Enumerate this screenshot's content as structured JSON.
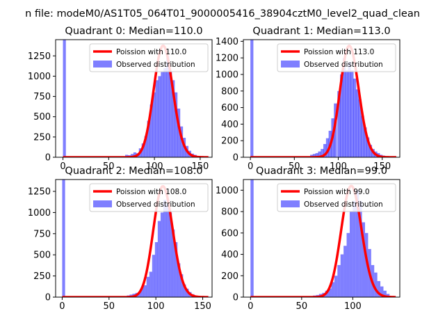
{
  "figure": {
    "suptitle": "n file: modeM0/AS1T05_064T01_9000005416_38904cztM0_level2_quad_clean"
  },
  "colors": {
    "histogram": "#0000ff",
    "poisson": "#ff0000",
    "axes": "#000000",
    "background": "#ffffff"
  },
  "chart_data": [
    {
      "type": "bar",
      "quadrant": 0,
      "title": "Quadrant 0: Median=110.0",
      "xlim": [
        -8,
        163
      ],
      "ylim": [
        0,
        1450
      ],
      "xticks": [
        0,
        50,
        100,
        150
      ],
      "yticks": [
        0,
        250,
        500,
        750,
        1000,
        1250
      ],
      "legend": {
        "placement": "top-right",
        "entries": [
          "Poission with 110.0",
          "Observed distribution"
        ]
      },
      "poisson_mean": 110,
      "poisson_peak": 1375,
      "bin_width": 3.2,
      "zero_bin_height": 1450,
      "bins": [
        [
          68,
          30
        ],
        [
          71,
          25
        ],
        [
          74,
          40
        ],
        [
          77,
          60
        ],
        [
          80,
          50
        ],
        [
          83,
          110
        ],
        [
          86,
          170
        ],
        [
          89,
          260
        ],
        [
          92,
          450
        ],
        [
          95,
          650
        ],
        [
          98,
          800
        ],
        [
          101,
          950
        ],
        [
          104,
          1000
        ],
        [
          107,
          1050
        ],
        [
          110,
          1100
        ],
        [
          113,
          1250
        ],
        [
          116,
          1050
        ],
        [
          119,
          950
        ],
        [
          122,
          800
        ],
        [
          125,
          600
        ],
        [
          128,
          380
        ],
        [
          131,
          240
        ],
        [
          134,
          140
        ],
        [
          137,
          80
        ],
        [
          140,
          45
        ],
        [
          143,
          30
        ],
        [
          146,
          15
        ],
        [
          149,
          10
        ],
        [
          152,
          5
        ]
      ]
    },
    {
      "type": "bar",
      "quadrant": 1,
      "title": "Quadrant 1: Median=113.0",
      "xlim": [
        -8,
        170
      ],
      "ylim": [
        0,
        1420
      ],
      "xticks": [
        0,
        50,
        100,
        150
      ],
      "yticks": [
        0,
        200,
        400,
        600,
        800,
        1000,
        1200,
        1400
      ],
      "legend": {
        "placement": "top-right",
        "entries": [
          "Poission with 113.0",
          "Observed distribution"
        ]
      },
      "poisson_mean": 113,
      "poisson_peak": 1345,
      "bin_width": 3.4,
      "zero_bin_height": 1420,
      "bins": [
        [
          68,
          30
        ],
        [
          71,
          40
        ],
        [
          74,
          50
        ],
        [
          77,
          70
        ],
        [
          80,
          100
        ],
        [
          83,
          160
        ],
        [
          86,
          230
        ],
        [
          89,
          320
        ],
        [
          92,
          470
        ],
        [
          95,
          650
        ],
        [
          99,
          800
        ],
        [
          102,
          1000
        ],
        [
          105,
          1200
        ],
        [
          108,
          1050
        ],
        [
          111,
          1150
        ],
        [
          114,
          1050
        ],
        [
          117,
          950
        ],
        [
          120,
          820
        ],
        [
          123,
          700
        ],
        [
          126,
          500
        ],
        [
          129,
          360
        ],
        [
          132,
          240
        ],
        [
          135,
          150
        ],
        [
          138,
          100
        ],
        [
          141,
          70
        ],
        [
          144,
          50
        ],
        [
          147,
          30
        ],
        [
          150,
          20
        ],
        [
          153,
          10
        ]
      ]
    },
    {
      "type": "bar",
      "quadrant": 2,
      "title": "Quadrant 2: Median=108.0",
      "xlim": [
        -7,
        160
      ],
      "ylim": [
        0,
        1390
      ],
      "xticks": [
        0,
        50,
        100,
        150
      ],
      "yticks": [
        0,
        250,
        500,
        750,
        1000,
        1250
      ],
      "legend": {
        "placement": "top-right",
        "entries": [
          "Poission with 108.0",
          "Observed distribution"
        ]
      },
      "poisson_mean": 108,
      "poisson_peak": 1310,
      "bin_width": 3.1,
      "zero_bin_height": 1390,
      "bins": [
        [
          66,
          10
        ],
        [
          69,
          20
        ],
        [
          72,
          30
        ],
        [
          75,
          40
        ],
        [
          78,
          50
        ],
        [
          81,
          60
        ],
        [
          84,
          120
        ],
        [
          87,
          140
        ],
        [
          90,
          240
        ],
        [
          93,
          300
        ],
        [
          96,
          500
        ],
        [
          99,
          650
        ],
        [
          102,
          900
        ],
        [
          105,
          1000
        ],
        [
          108,
          1150
        ],
        [
          111,
          1100
        ],
        [
          114,
          1000
        ],
        [
          117,
          800
        ],
        [
          120,
          650
        ],
        [
          123,
          400
        ],
        [
          126,
          270
        ],
        [
          129,
          150
        ],
        [
          132,
          100
        ],
        [
          135,
          60
        ],
        [
          138,
          35
        ],
        [
          141,
          20
        ],
        [
          144,
          10
        ],
        [
          147,
          5
        ]
      ]
    },
    {
      "type": "bar",
      "quadrant": 3,
      "title": "Quadrant 3: Median=99.0",
      "xlim": [
        -7,
        146
      ],
      "ylim": [
        0,
        1100
      ],
      "xticks": [
        0,
        50,
        100
      ],
      "yticks": [
        0,
        200,
        400,
        600,
        800,
        1000
      ],
      "legend": {
        "placement": "top-right",
        "entries": [
          "Poission with 99.0",
          "Observed distribution"
        ]
      },
      "poisson_mean": 99,
      "poisson_peak": 1040,
      "bin_width": 3.0,
      "zero_bin_height": 1100,
      "bins": [
        [
          58,
          10
        ],
        [
          61,
          15
        ],
        [
          64,
          20
        ],
        [
          67,
          30
        ],
        [
          70,
          40
        ],
        [
          73,
          60
        ],
        [
          76,
          80
        ],
        [
          79,
          140
        ],
        [
          82,
          200
        ],
        [
          85,
          300
        ],
        [
          88,
          400
        ],
        [
          91,
          480
        ],
        [
          94,
          600
        ],
        [
          97,
          800
        ],
        [
          100,
          900
        ],
        [
          103,
          1000
        ],
        [
          106,
          900
        ],
        [
          109,
          700
        ],
        [
          112,
          600
        ],
        [
          115,
          450
        ],
        [
          118,
          300
        ],
        [
          121,
          230
        ],
        [
          124,
          150
        ],
        [
          127,
          100
        ],
        [
          130,
          60
        ],
        [
          133,
          30
        ],
        [
          136,
          10
        ]
      ]
    }
  ]
}
